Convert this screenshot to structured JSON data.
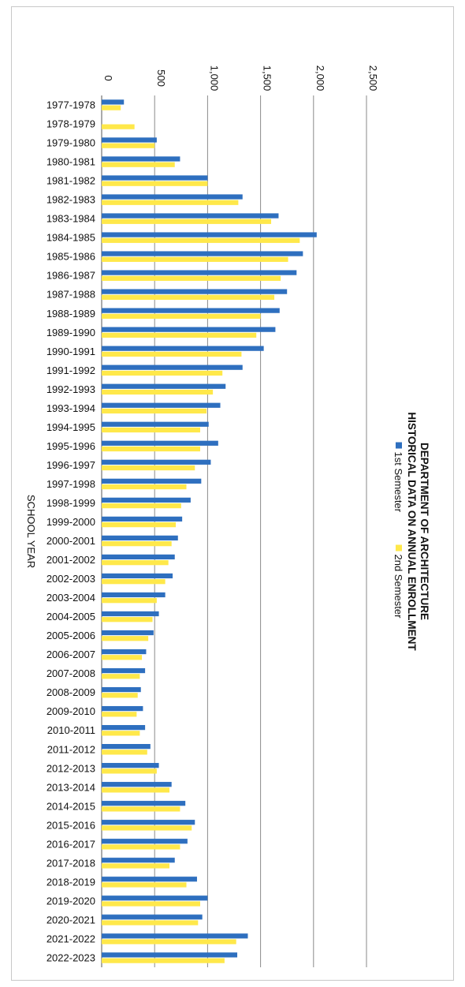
{
  "chart_data": {
    "type": "bar",
    "orientation": "horizontal",
    "title": [
      "DEPARTMENT OF ARCHITECTURE",
      "HISTORICAL DATA ON ANNUAL ENROLLMENT"
    ],
    "xlabel": "",
    "ylabel": "SCHOOL YEAR",
    "xlim": [
      0,
      2500
    ],
    "xticks": [
      "0",
      "500",
      "1,000",
      "1,500",
      "2,000",
      "2,500"
    ],
    "grid": true,
    "legend_position": "right",
    "categories": [
      "1977-1978",
      "1978-1979",
      "1979-1980",
      "1980-1981",
      "1981-1982",
      "1982-1983",
      "1983-1984",
      "1984-1985",
      "1985-1986",
      "1986-1987",
      "1987-1988",
      "1988-1989",
      "1989-1990",
      "1990-1991",
      "1991-1992",
      "1992-1993",
      "1993-1994",
      "1994-1995",
      "1995-1996",
      "1996-1997",
      "1997-1998",
      "1998-1999",
      "1999-2000",
      "2000-2001",
      "2001-2002",
      "2002-2003",
      "2003-2004",
      "2004-2005",
      "2005-2006",
      "2006-2007",
      "2007-2008",
      "2008-2009",
      "2009-2010",
      "2010-2011",
      "2011-2012",
      "2012-2013",
      "2013-2014",
      "2014-2015",
      "2015-2016",
      "2016-2017",
      "2017-2018",
      "2018-2019",
      "2019-2020",
      "2020-2021",
      "2021-2022",
      "2022-2023"
    ],
    "series": [
      {
        "name": "1st Semester",
        "color": "#2e6fbf",
        "values": [
          210,
          0,
          520,
          740,
          1000,
          1330,
          1670,
          2030,
          1900,
          1840,
          1750,
          1680,
          1640,
          1530,
          1330,
          1170,
          1120,
          1010,
          1100,
          1030,
          940,
          840,
          760,
          720,
          690,
          670,
          600,
          540,
          490,
          420,
          410,
          370,
          390,
          410,
          460,
          540,
          660,
          790,
          880,
          810,
          690,
          900,
          1000,
          950,
          1380,
          1280
        ]
      },
      {
        "name": "2nd Semester",
        "color": "#ffe84a",
        "values": [
          180,
          310,
          500,
          690,
          1000,
          1290,
          1600,
          1870,
          1760,
          1690,
          1630,
          1500,
          1460,
          1320,
          1140,
          1050,
          990,
          930,
          930,
          880,
          800,
          750,
          700,
          660,
          630,
          600,
          520,
          480,
          440,
          380,
          360,
          340,
          330,
          360,
          430,
          520,
          640,
          740,
          850,
          740,
          640,
          800,
          930,
          910,
          1270,
          1160
        ]
      }
    ]
  }
}
